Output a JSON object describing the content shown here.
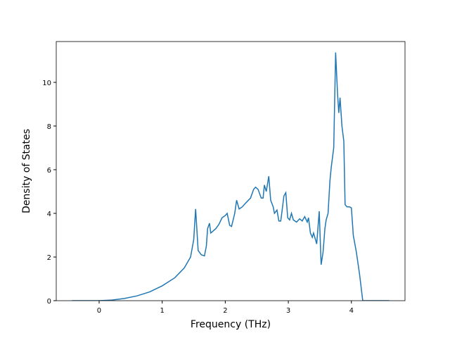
{
  "chart_data": {
    "type": "line",
    "x_label": "Frequency (THz)",
    "y_label": "Density of States",
    "xlim": [
      -0.68,
      4.85
    ],
    "ylim": [
      0,
      11.87
    ],
    "xticks": [
      0,
      1,
      2,
      3,
      4
    ],
    "yticks": [
      0,
      2,
      4,
      6,
      8,
      10
    ],
    "series": [
      {
        "color": "#1f77b4",
        "x": [
          -0.43,
          0,
          0.2,
          0.4,
          0.6,
          0.8,
          1.0,
          1.2,
          1.35,
          1.45,
          1.5,
          1.53,
          1.57,
          1.62,
          1.67,
          1.7,
          1.72,
          1.75,
          1.77,
          1.85,
          1.9,
          1.95,
          2.0,
          2.03,
          2.07,
          2.1,
          2.15,
          2.18,
          2.22,
          2.27,
          2.3,
          2.35,
          2.4,
          2.45,
          2.48,
          2.52,
          2.57,
          2.6,
          2.62,
          2.65,
          2.69,
          2.72,
          2.76,
          2.78,
          2.82,
          2.85,
          2.88,
          2.9,
          2.93,
          2.96,
          2.99,
          3.02,
          3.05,
          3.08,
          3.13,
          3.18,
          3.22,
          3.26,
          3.3,
          3.32,
          3.35,
          3.38,
          3.4,
          3.45,
          3.49,
          3.52,
          3.55,
          3.58,
          3.6,
          3.63,
          3.66,
          3.68,
          3.72,
          3.75,
          3.78,
          3.8,
          3.82,
          3.85,
          3.88,
          3.9,
          3.93,
          3.97,
          4.0,
          4.03,
          4.08,
          4.13,
          4.18,
          4.6
        ],
        "values": [
          0,
          0,
          0.03,
          0.1,
          0.22,
          0.4,
          0.68,
          1.05,
          1.5,
          2.0,
          2.8,
          4.2,
          2.3,
          2.1,
          2.05,
          2.5,
          3.3,
          3.55,
          3.1,
          3.3,
          3.5,
          3.8,
          3.9,
          4.0,
          3.45,
          3.4,
          4.0,
          4.6,
          4.2,
          4.3,
          4.4,
          4.55,
          4.7,
          5.1,
          5.2,
          5.1,
          4.7,
          4.7,
          5.3,
          5.0,
          5.7,
          4.6,
          4.3,
          4.0,
          4.15,
          3.65,
          3.65,
          4.1,
          4.8,
          4.95,
          3.8,
          3.7,
          4.0,
          3.7,
          3.6,
          3.75,
          3.65,
          3.85,
          3.6,
          3.8,
          3.1,
          2.9,
          3.1,
          2.6,
          4.1,
          1.65,
          2.2,
          3.3,
          3.7,
          4.0,
          5.5,
          6.1,
          7.0,
          11.37,
          9.5,
          8.6,
          9.3,
          8.0,
          7.3,
          4.4,
          4.3,
          4.3,
          4.25,
          3.0,
          2.2,
          1.2,
          0,
          0
        ]
      }
    ]
  }
}
